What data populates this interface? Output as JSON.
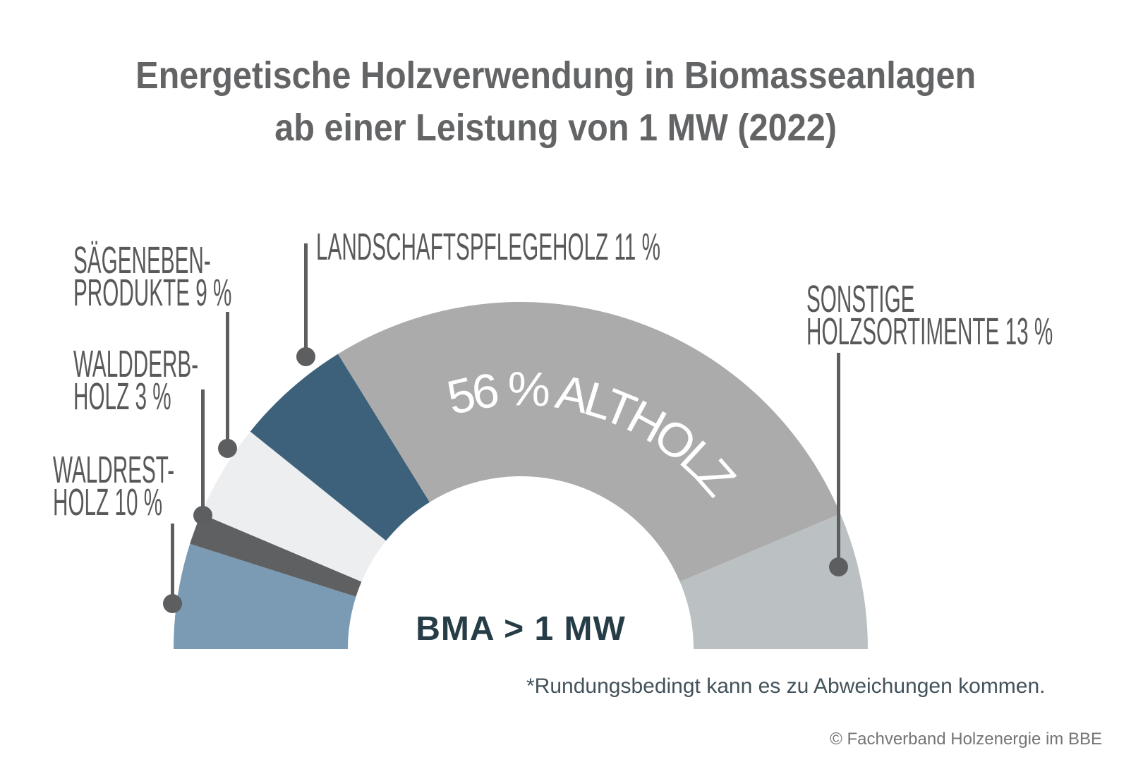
{
  "title": {
    "line1": "Energetische Holzverwendung in Biomasseanlagen",
    "line2": "ab einer Leistung von 1 MW (2022)"
  },
  "chart_data": {
    "type": "pie",
    "variant": "half-donut",
    "unit": "%",
    "start_angle_deg": 180,
    "end_angle_deg": 0,
    "center_label": "BMA > 1 MW",
    "arc_label": "56 % ALTHOLZ",
    "arc_label_segment": "altholz",
    "segments": [
      {
        "id": "waldrestholz",
        "label": "Waldrestholz",
        "value": 10,
        "color": "#7b9bb4",
        "callout_lines": [
          "WALDREST-",
          "HOLZ 10 %"
        ]
      },
      {
        "id": "waldderbholz",
        "label": "Waldderbholz",
        "value": 3,
        "color": "#5f6061",
        "callout_lines": [
          "WALDDERB-",
          "HOLZ 3 %"
        ]
      },
      {
        "id": "saegenebenprodukte",
        "label": "Sägenebenprodukte",
        "value": 9,
        "color": "#eceef0",
        "callout_lines": [
          "SÄGENEBEN-",
          "PRODUKTE 9 %"
        ]
      },
      {
        "id": "landschaftspflegeholz",
        "label": "Landschaftspflegeholz",
        "value": 11,
        "color": "#3d617a",
        "callout_lines": [
          "LANDSCHAFTSPFLEGEHOLZ 11 %"
        ]
      },
      {
        "id": "altholz",
        "label": "Altholz",
        "value": 56,
        "color": "#ababab",
        "callout_lines": []
      },
      {
        "id": "sonstige-holzsortimente",
        "label": "Sonstige Holzsortimente",
        "value": 13,
        "color": "#bbc0c3",
        "callout_lines": [
          "SONSTIGE",
          "HOLZSORTIMENTE 13 %"
        ]
      }
    ]
  },
  "footnote": "*Rundungsbedingt kann es zu Abweichungen kommen.",
  "copyright": "© Fachverband Holzenergie im BBE",
  "colors": {
    "background": "#ffffff",
    "title_text": "#636466",
    "callout_text": "#58595b",
    "leader_line": "#5d5e60",
    "center_label_text": "#263d47",
    "arc_label_text": "#ffffff",
    "footnote_text": "#43525b",
    "copyright_text": "#737476"
  }
}
